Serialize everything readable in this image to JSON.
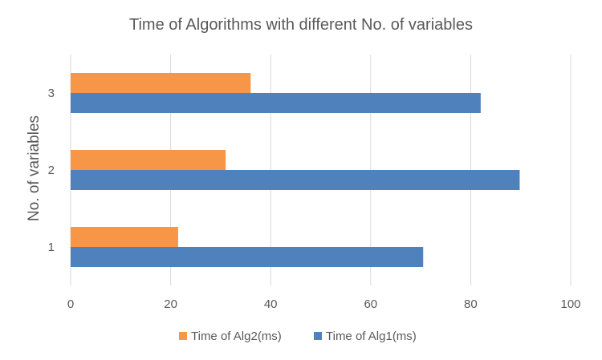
{
  "chart_data": {
    "type": "bar",
    "orientation": "horizontal",
    "title": "Time of Algorithms with different No. of variables",
    "xlabel": "",
    "ylabel": "No. of variables",
    "categories": [
      "1",
      "2",
      "3"
    ],
    "series": [
      {
        "name": "Time of Alg2(ms)",
        "values": [
          21.5,
          31,
          36
        ],
        "color": "#F79646"
      },
      {
        "name": "Time of Alg1(ms)",
        "values": [
          70.5,
          89.8,
          82
        ],
        "color": "#4F81BD"
      }
    ],
    "xlim": [
      0,
      100
    ],
    "xticks": [
      "0",
      "20",
      "40",
      "60",
      "80",
      "100"
    ],
    "grid": true,
    "legend_position": "bottom"
  }
}
